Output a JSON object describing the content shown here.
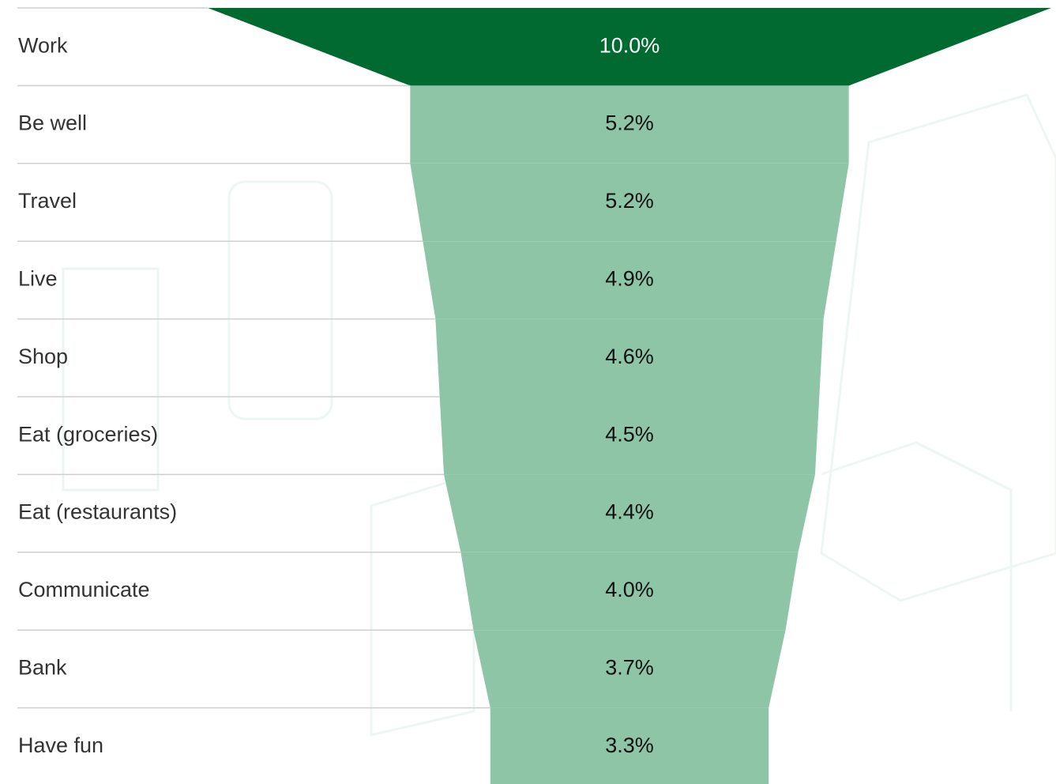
{
  "chart_data": {
    "type": "funnel",
    "categories": [
      "Work",
      "Be well",
      "Travel",
      "Live",
      "Shop",
      "Eat (groceries)",
      "Eat (restaurants)",
      "Communicate",
      "Bank",
      "Have fun"
    ],
    "values": [
      10.0,
      5.2,
      5.2,
      4.9,
      4.6,
      4.5,
      4.4,
      4.0,
      3.7,
      3.3
    ],
    "value_labels": [
      "10.0%",
      "5.2%",
      "5.2%",
      "4.9%",
      "4.6%",
      "4.5%",
      "4.4%",
      "4.0%",
      "3.7%",
      "3.3%"
    ],
    "colors": [
      "#006a31",
      "#8ec5a7",
      "#8ec5a7",
      "#8ec5a7",
      "#8ec5a7",
      "#8ec5a7",
      "#8ec5a7",
      "#8ec5a7",
      "#8ec5a7",
      "#8ec5a7"
    ]
  }
}
